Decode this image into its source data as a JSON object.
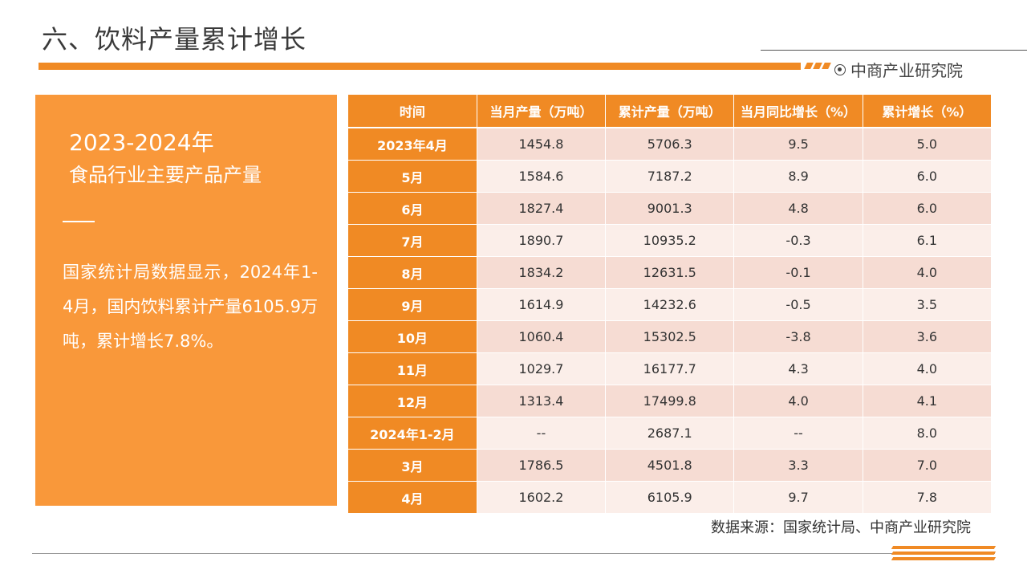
{
  "header": {
    "title": "六、饮料产量累计增长",
    "brand": "中商产业研究院"
  },
  "panel": {
    "title_line1": "2023-2024年",
    "title_line2": "食品行业主要产品产量",
    "text": "国家统计局数据显示，2024年1-4月，国内饮料累计产量6105.9万吨，累计增长7.8%。"
  },
  "table": {
    "headers": [
      "时间",
      "当月产量（万吨）",
      "累计产量（万吨）",
      "当月同比增长（%）",
      "累计增长（%）"
    ],
    "rows": [
      [
        "2023年4月",
        "1454.8",
        "5706.3",
        "9.5",
        "5.0"
      ],
      [
        "5月",
        "1584.6",
        "7187.2",
        "8.9",
        "6.0"
      ],
      [
        "6月",
        "1827.4",
        "9001.3",
        "4.8",
        "6.0"
      ],
      [
        "7月",
        "1890.7",
        "10935.2",
        "-0.3",
        "6.1"
      ],
      [
        "8月",
        "1834.2",
        "12631.5",
        "-0.1",
        "4.0"
      ],
      [
        "9月",
        "1614.9",
        "14232.6",
        "-0.5",
        "3.5"
      ],
      [
        "10月",
        "1060.4",
        "15302.5",
        "-3.8",
        "3.6"
      ],
      [
        "11月",
        "1029.7",
        "16177.7",
        "4.3",
        "4.0"
      ],
      [
        "12月",
        "1313.4",
        "17499.8",
        "4.0",
        "4.1"
      ],
      [
        "2024年1-2月",
        "--",
        "2687.1",
        "--",
        "8.0"
      ],
      [
        "3月",
        "1786.5",
        "4501.8",
        "3.3",
        "7.0"
      ],
      [
        "4月",
        "1602.2",
        "6105.9",
        "9.7",
        "7.8"
      ]
    ]
  },
  "footer": {
    "source": "数据来源：国家统计局、中商产业研究院"
  },
  "colors": {
    "accent": "#f08a24",
    "panel": "#f9983a",
    "row_dark": "#f6dcd3",
    "row_light": "#fbeee9"
  }
}
